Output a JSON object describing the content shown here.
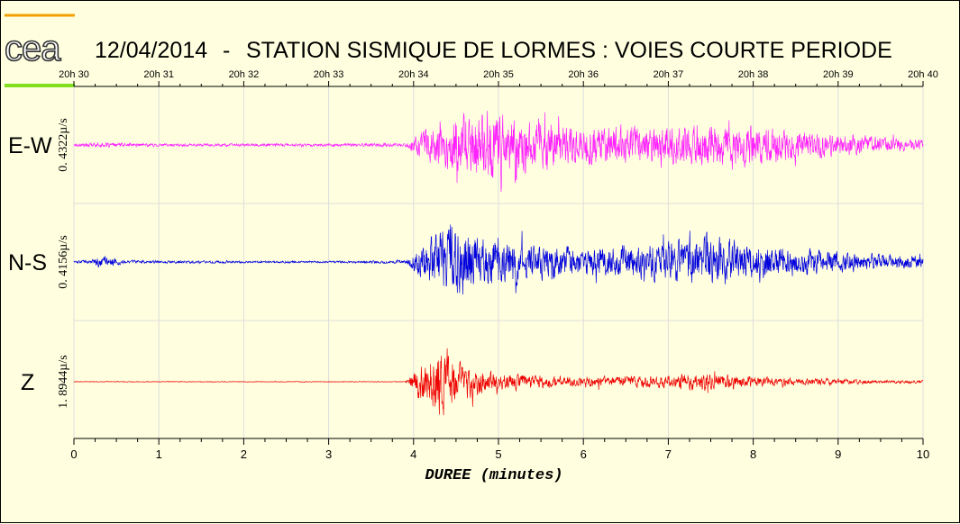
{
  "header": {
    "logo_text": "cea",
    "date": "12/04/2014",
    "separator": "-",
    "title": "STATION SISMIQUE DE LORMES : VOIES COURTE PERIODE"
  },
  "colors": {
    "background": "#ffffe0",
    "grid": "#dcdcdc",
    "logo_orange": "#f0a000",
    "logo_green": "#80e020",
    "ew": "#ff20ff",
    "ns": "#0000dd",
    "z": "#ee0000"
  },
  "chart_data": {
    "type": "line",
    "title": "12/04/2014  -  STATION SISMIQUE DE LORMES : VOIES COURTE PERIODE",
    "xlabel": "DUREE (minutes)",
    "xlim": [
      0,
      10
    ],
    "x_ticks": [
      "0",
      "1",
      "2",
      "3",
      "4",
      "5",
      "6",
      "7",
      "8",
      "9",
      "10"
    ],
    "top_ticks": [
      "20h 30",
      "20h 31",
      "20h 32",
      "20h 33",
      "20h 34",
      "20h 35",
      "20h 36",
      "20h 37",
      "20h 38",
      "20h 39",
      "20h 40"
    ],
    "grid": true,
    "series": [
      {
        "name": "E-W",
        "scale": "0. 4322µ/s",
        "color": "#ff20ff",
        "envelope": {
          "x": [
            0,
            0.3,
            0.5,
            1.0,
            2.0,
            3.0,
            3.9,
            4.05,
            4.3,
            4.5,
            4.8,
            4.9,
            5.2,
            5.6,
            6.0,
            6.5,
            7.0,
            7.5,
            8.0,
            8.5,
            9.0,
            9.5,
            10.0
          ],
          "amplitude": [
            0.05,
            0.06,
            0.06,
            0.04,
            0.04,
            0.04,
            0.05,
            0.3,
            0.6,
            0.8,
            0.95,
            1.0,
            0.75,
            0.6,
            0.55,
            0.5,
            0.55,
            0.6,
            0.55,
            0.4,
            0.3,
            0.22,
            0.15
          ]
        }
      },
      {
        "name": "N-S",
        "scale": "0. 4156µ/s",
        "color": "#0000dd",
        "envelope": {
          "x": [
            0,
            0.2,
            0.3,
            0.45,
            0.6,
            1.0,
            2.0,
            3.0,
            3.9,
            4.05,
            4.3,
            4.5,
            4.8,
            5.0,
            5.5,
            6.0,
            6.5,
            7.0,
            7.5,
            8.0,
            8.5,
            9.0,
            9.5,
            10.0
          ],
          "amplitude": [
            0.04,
            0.05,
            0.14,
            0.12,
            0.05,
            0.04,
            0.03,
            0.03,
            0.04,
            0.35,
            0.9,
            1.0,
            0.7,
            0.6,
            0.45,
            0.4,
            0.45,
            0.55,
            0.7,
            0.5,
            0.4,
            0.3,
            0.22,
            0.17
          ]
        }
      },
      {
        "name": "Z",
        "scale": "1. 8944µ/s",
        "color": "#ee0000",
        "envelope": {
          "x": [
            0,
            1.0,
            2.0,
            3.0,
            3.9,
            4.0,
            4.2,
            4.3,
            4.5,
            4.7,
            5.0,
            5.5,
            6.0,
            6.5,
            7.0,
            7.3,
            7.6,
            8.0,
            8.5,
            9.0,
            9.5,
            10.0
          ],
          "amplitude": [
            0.01,
            0.01,
            0.01,
            0.01,
            0.01,
            0.3,
            0.75,
            1.0,
            0.6,
            0.4,
            0.25,
            0.18,
            0.15,
            0.14,
            0.18,
            0.25,
            0.2,
            0.15,
            0.1,
            0.08,
            0.05,
            0.04
          ]
        }
      }
    ]
  }
}
